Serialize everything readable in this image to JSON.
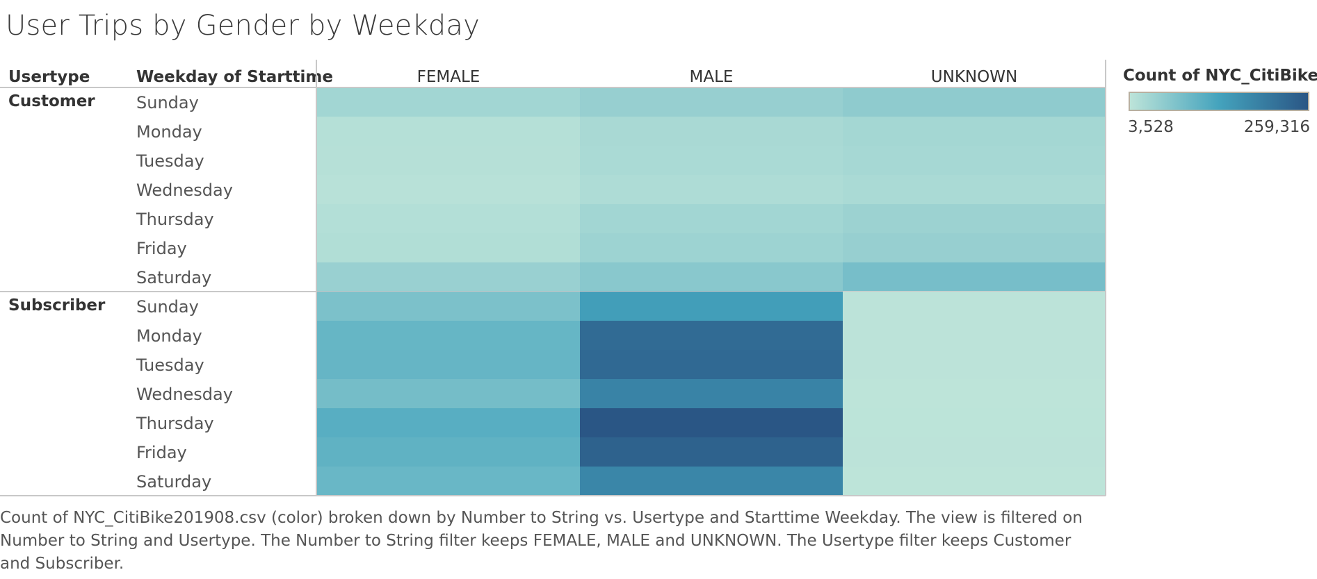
{
  "title": "User Trips by Gender by Weekday",
  "caption": "Count of NYC_CitiBike201908.csv (color) broken down by Number to String vs. Usertype and Starttime Weekday. The view is filtered on Number to String and Usertype. The Number to String filter keeps FEMALE, MALE and UNKNOWN. The Usertype filter keeps Customer and Subscriber.",
  "legend": {
    "title": "Count of NYC_CitiBike",
    "min_label": "3,528",
    "max_label": "259,316",
    "color_low": "#bde4d9",
    "color_mid": "#44a3bd",
    "color_high": "#2a5685"
  },
  "chart_data": {
    "type": "heatmap",
    "row_header_1": "Usertype",
    "row_header_2": "Weekday of Starttime",
    "columns": [
      "FEMALE",
      "MALE",
      "UNKNOWN"
    ],
    "value_range": [
      3528,
      259316
    ],
    "groups": [
      {
        "name": "Customer",
        "rows": [
          {
            "label": "Sunday",
            "values": [
              32000,
              44000,
              52000
            ]
          },
          {
            "label": "Monday",
            "values": [
              12000,
              25000,
              30000
            ]
          },
          {
            "label": "Tuesday",
            "values": [
              11000,
              24000,
              28000
            ]
          },
          {
            "label": "Wednesday",
            "values": [
              9000,
              19000,
              24000
            ]
          },
          {
            "label": "Thursday",
            "values": [
              14000,
              32000,
              38000
            ]
          },
          {
            "label": "Friday",
            "values": [
              16000,
              37000,
              44000
            ]
          },
          {
            "label": "Saturday",
            "values": [
              42000,
              58000,
              78000
            ]
          }
        ]
      },
      {
        "name": "Subscriber",
        "rows": [
          {
            "label": "Sunday",
            "values": [
              72000,
              140000,
              5000
            ]
          },
          {
            "label": "Monday",
            "values": [
              95000,
              225000,
              5000
            ]
          },
          {
            "label": "Tuesday",
            "values": [
              96000,
              228000,
              4800
            ]
          },
          {
            "label": "Wednesday",
            "values": [
              80000,
              185000,
              4000
            ]
          },
          {
            "label": "Thursday",
            "values": [
              110000,
              259316,
              4500
            ]
          },
          {
            "label": "Friday",
            "values": [
              102000,
              240000,
              4600
            ]
          },
          {
            "label": "Saturday",
            "values": [
              92000,
              180000,
              3528
            ]
          }
        ]
      }
    ]
  }
}
